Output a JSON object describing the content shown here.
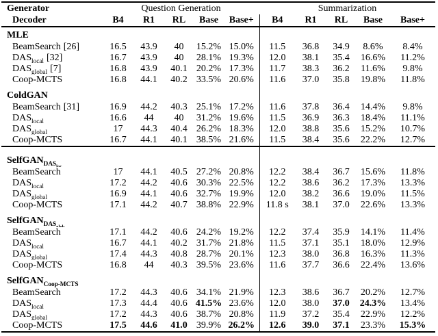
{
  "page": {
    "type": "academic-results-table",
    "background": "#ffffff",
    "text_color": "#000000",
    "rule_color": "#000000"
  },
  "header": {
    "corner_top": "Generator",
    "corner_bottom": "Decoder",
    "groups": [
      {
        "label": "Question Generation",
        "columns": [
          "B4",
          "R1",
          "RL",
          "Base",
          "Base+"
        ]
      },
      {
        "label": "Summarization",
        "columns": [
          "B4",
          "R1",
          "RL",
          "Base",
          "Base+"
        ]
      }
    ]
  },
  "sections": [
    {
      "title": {
        "base": "MLE",
        "sub": "",
        "subsub": ""
      },
      "ruled": false,
      "rows": [
        {
          "decoder": {
            "base": "BeamSearch",
            "sub": "",
            "ref": "[26]"
          },
          "values": [
            "16.5",
            "43.9",
            "40",
            "15.2%",
            "15.0%",
            "11.5",
            "36.8",
            "34.9",
            "8.6%",
            "8.4%"
          ],
          "bold": []
        },
        {
          "decoder": {
            "base": "DAS",
            "sub": "local",
            "ref": "[32]"
          },
          "values": [
            "16.7",
            "43.9",
            "40",
            "28.1%",
            "19.3%",
            "12.0",
            "38.1",
            "35.4",
            "16.6%",
            "11.2%"
          ],
          "bold": []
        },
        {
          "decoder": {
            "base": "DAS",
            "sub": "global",
            "ref": "[7]"
          },
          "values": [
            "16.8",
            "43.9",
            "40.1",
            "20.2%",
            "17.3%",
            "11.7",
            "38.3",
            "36.2",
            "11.6%",
            "9.8%"
          ],
          "bold": []
        },
        {
          "decoder": {
            "base": "Coop-MCTS",
            "sub": "",
            "ref": ""
          },
          "values": [
            "16.8",
            "44.1",
            "40.2",
            "33.5%",
            "20.6%",
            "11.6",
            "37.0",
            "35.8",
            "19.8%",
            "11.8%"
          ],
          "bold": []
        }
      ]
    },
    {
      "title": {
        "base": "ColdGAN",
        "sub": "",
        "subsub": ""
      },
      "ruled": false,
      "rows": [
        {
          "decoder": {
            "base": "BeamSearch",
            "sub": "",
            "ref": "[31]"
          },
          "values": [
            "16.9",
            "44.2",
            "40.3",
            "25.1%",
            "17.2%",
            "11.6",
            "37.8",
            "36.4",
            "14.4%",
            "9.8%"
          ],
          "bold": []
        },
        {
          "decoder": {
            "base": "DAS",
            "sub": "local",
            "ref": ""
          },
          "values": [
            "16.6",
            "44",
            "40",
            "31.2%",
            "19.6%",
            "11.5",
            "36.9",
            "36.3",
            "18.4%",
            "11.1%"
          ],
          "bold": []
        },
        {
          "decoder": {
            "base": "DAS",
            "sub": "global",
            "ref": ""
          },
          "values": [
            "17",
            "44.3",
            "40.4",
            "26.2%",
            "18.3%",
            "12.0",
            "38.8",
            "35.6",
            "15.2%",
            "10.7%"
          ],
          "bold": []
        },
        {
          "decoder": {
            "base": "Coop-MCTS",
            "sub": "",
            "ref": ""
          },
          "values": [
            "16.7",
            "44.1",
            "40.1",
            "38.5%",
            "21.6%",
            "11.5",
            "38.4",
            "35.6",
            "22.2%",
            "12.7%"
          ],
          "bold": []
        }
      ]
    },
    {
      "title": {
        "base": "SelfGAN",
        "sub": "DAS",
        "subsub": "loc"
      },
      "ruled": true,
      "rows": [
        {
          "decoder": {
            "base": "BeamSearch",
            "sub": "",
            "ref": ""
          },
          "values": [
            "17",
            "44.1",
            "40.5",
            "27.2%",
            "20.8%",
            "12.2",
            "38.4",
            "36.7",
            "15.6%",
            "11.8%"
          ],
          "bold": []
        },
        {
          "decoder": {
            "base": "DAS",
            "sub": "local",
            "ref": ""
          },
          "values": [
            "17.2",
            "44.2",
            "40.6",
            "30.3%",
            "22.5%",
            "12.2",
            "38.6",
            "36.2",
            "17.3%",
            "13.3%"
          ],
          "bold": []
        },
        {
          "decoder": {
            "base": "DAS",
            "sub": "global",
            "ref": ""
          },
          "values": [
            "16.9",
            "44.1",
            "40.6",
            "32.7%",
            "19.9%",
            "12.0",
            "38.2",
            "36.6",
            "19.0%",
            "11.5%"
          ],
          "bold": []
        },
        {
          "decoder": {
            "base": "Coop-MCTS",
            "sub": "",
            "ref": ""
          },
          "values": [
            "17.1",
            "44.2",
            "40.7",
            "38.8%",
            "22.9%",
            "11.8 s",
            "38.1",
            "37.0",
            "22.6%",
            "13.3%"
          ],
          "bold": []
        }
      ]
    },
    {
      "title": {
        "base": "SelfGAN",
        "sub": "DAS",
        "subsub": "glob"
      },
      "ruled": false,
      "rows": [
        {
          "decoder": {
            "base": "BeamSearch",
            "sub": "",
            "ref": ""
          },
          "values": [
            "17.1",
            "44.2",
            "40.6",
            "24.2%",
            "19.2%",
            "12.2",
            "37.4",
            "35.9",
            "14.1%",
            "11.4%"
          ],
          "bold": []
        },
        {
          "decoder": {
            "base": "DAS",
            "sub": "local",
            "ref": ""
          },
          "values": [
            "16.7",
            "44.1",
            "40.2",
            "31.7%",
            "21.8%",
            "11.5",
            "37.1",
            "35.1",
            "18.0%",
            "12.9%"
          ],
          "bold": []
        },
        {
          "decoder": {
            "base": "DAS",
            "sub": "global",
            "ref": ""
          },
          "values": [
            "17.4",
            "44.3",
            "40.8",
            "28.7%",
            "20.1%",
            "12.3",
            "38.0",
            "36.8",
            "16.3%",
            "11.3%"
          ],
          "bold": []
        },
        {
          "decoder": {
            "base": "Coop-MCTS",
            "sub": "",
            "ref": ""
          },
          "values": [
            "16.8",
            "44",
            "40.3",
            "39.5%",
            "23.6%",
            "11.6",
            "37.7",
            "36.6",
            "22.4%",
            "13.6%"
          ],
          "bold": []
        }
      ]
    },
    {
      "title": {
        "base": "SelfGAN",
        "sub": "Coop-MCTS",
        "subsub": ""
      },
      "ruled": false,
      "rows": [
        {
          "decoder": {
            "base": "BeamSearch",
            "sub": "",
            "ref": ""
          },
          "values": [
            "17.2",
            "44.3",
            "40.6",
            "34.1%",
            "21.9%",
            "12.3",
            "38.6",
            "36.7",
            "20.2%",
            "12.7%"
          ],
          "bold": []
        },
        {
          "decoder": {
            "base": "DAS",
            "sub": "local",
            "ref": ""
          },
          "values": [
            "17.3",
            "44.4",
            "40.6",
            "41.5%",
            "23.6%",
            "12.0",
            "38.0",
            "37.0",
            "24.3%",
            "13.4%"
          ],
          "bold": [
            3,
            7,
            8
          ]
        },
        {
          "decoder": {
            "base": "DAS",
            "sub": "global",
            "ref": ""
          },
          "values": [
            "17.2",
            "44.3",
            "40.6",
            "38.7%",
            "20.8%",
            "11.9",
            "37.2",
            "35.4",
            "22.9%",
            "12.2%"
          ],
          "bold": []
        },
        {
          "decoder": {
            "base": "Coop-MCTS",
            "sub": "",
            "ref": ""
          },
          "values": [
            "17.5",
            "44.6",
            "41.0",
            "39.9%",
            "26.2%",
            "12.6",
            "39.0",
            "37.1",
            "23.3%",
            "15.3%"
          ],
          "bold": [
            0,
            1,
            2,
            4,
            5,
            6,
            7,
            9
          ]
        }
      ]
    }
  ]
}
